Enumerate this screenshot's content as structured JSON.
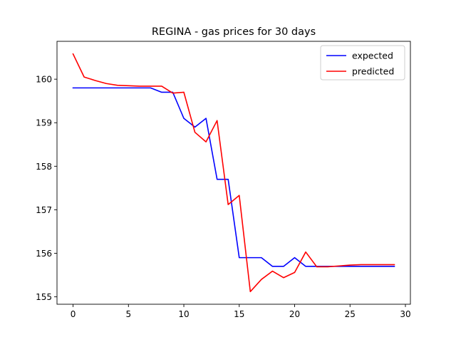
{
  "chart_data": {
    "type": "line",
    "title": "REGINA - gas prices for 30 days",
    "xlabel": "",
    "ylabel": "",
    "xlim": [
      -1.45,
      30.45
    ],
    "ylim": [
      154.83,
      160.87
    ],
    "xticks": [
      0,
      5,
      10,
      15,
      20,
      25,
      30
    ],
    "yticks": [
      155,
      156,
      157,
      158,
      159,
      160
    ],
    "grid": false,
    "legend_position": "top-right",
    "x": [
      0,
      1,
      2,
      3,
      4,
      5,
      6,
      7,
      8,
      9,
      10,
      11,
      12,
      13,
      14,
      15,
      16,
      17,
      18,
      19,
      20,
      21,
      22,
      23,
      24,
      25,
      26,
      27,
      28,
      29
    ],
    "series": [
      {
        "name": "expected",
        "color": "#0000ff",
        "values": [
          159.8,
          159.8,
          159.8,
          159.8,
          159.8,
          159.8,
          159.8,
          159.8,
          159.7,
          159.7,
          159.1,
          158.9,
          159.1,
          157.7,
          157.7,
          155.9,
          155.9,
          155.9,
          155.7,
          155.7,
          155.9,
          155.7,
          155.7,
          155.7,
          155.7,
          155.7,
          155.7,
          155.7,
          155.7,
          155.7
        ]
      },
      {
        "name": "predicted",
        "color": "#ff0000",
        "values": [
          160.58,
          160.05,
          159.97,
          159.9,
          159.86,
          159.85,
          159.84,
          159.84,
          159.84,
          159.68,
          159.7,
          158.78,
          158.56,
          159.05,
          157.12,
          157.33,
          155.12,
          155.4,
          155.59,
          155.44,
          155.56,
          156.03,
          155.69,
          155.69,
          155.71,
          155.73,
          155.74,
          155.74,
          155.74,
          155.74
        ]
      }
    ]
  }
}
